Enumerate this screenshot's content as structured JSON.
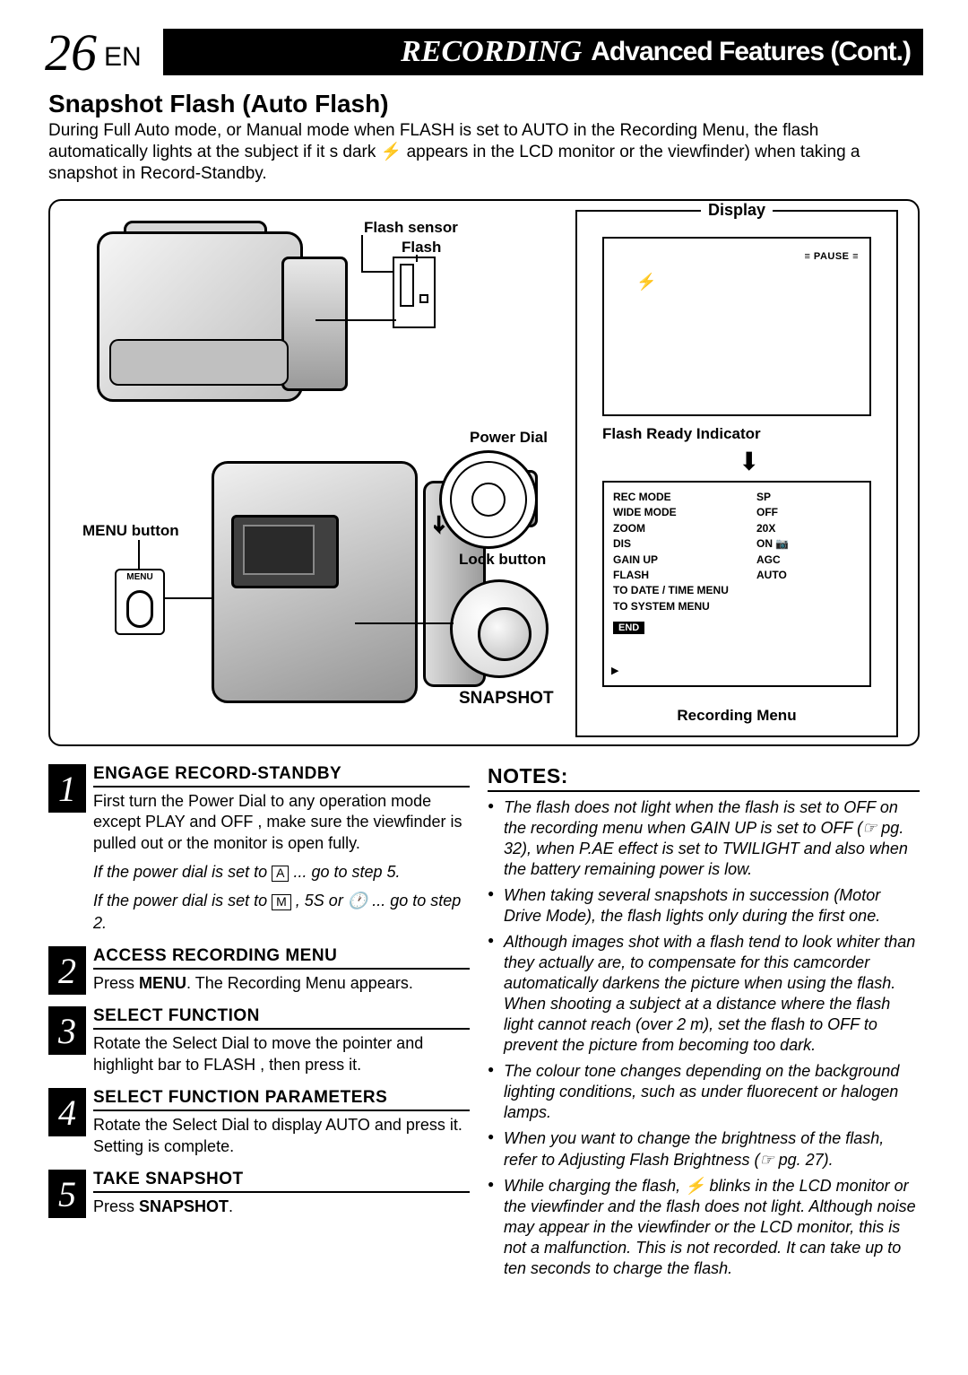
{
  "header": {
    "pageNumber": "26",
    "lang": "EN",
    "categoryItalic": "RECORDING",
    "categoryRest": "Advanced Features (Cont.)"
  },
  "sectionTitle": "Snapshot Flash (Auto Flash)",
  "intro": "During Full Auto mode, or Manual mode when FLASH is set to AUTO in the Recording Menu, the flash automatically lights at the subject if it s dark ⚡ appears in the LCD monitor or the viewfinder) when taking a snapshot in Record-Standby.",
  "diagram": {
    "flashSensor": "Flash sensor",
    "flash": "Flash",
    "powerDial": "Power Dial",
    "lockButton": "Lock button",
    "menuButton": "MENU button",
    "menuSmall": "MENU",
    "snapshot": "SNAPSHOT",
    "display": {
      "title": "Display",
      "pause": "PAUSE",
      "flashReadyIndicator": "Flash Ready Indicator",
      "recordingMenuLabel": "Recording Menu",
      "menu": [
        {
          "k": "REC MODE",
          "v": "SP"
        },
        {
          "k": "WIDE MODE",
          "v": "OFF"
        },
        {
          "k": "ZOOM",
          "v": "20X"
        },
        {
          "k": "DIS",
          "v": "ON 📷"
        },
        {
          "k": "GAIN UP",
          "v": "AGC"
        },
        {
          "k": "FLASH",
          "v": "AUTO"
        },
        {
          "k": "TO DATE / TIME MENU",
          "v": ""
        },
        {
          "k": "TO SYSTEM MENU",
          "v": ""
        }
      ],
      "end": "END"
    }
  },
  "steps": [
    {
      "n": "1",
      "title": "ENGAGE RECORD-STANDBY",
      "text": "First turn the Power Dial to any operation mode except PLAY and OFF , make sure the viewfinder is pulled out or the monitor is open fully.",
      "italicA_pre": "If the power dial is set to ",
      "italicA_box": "A",
      "italicA_post": " ... go to step 5.",
      "italicB_pre": "If the power dial is set to ",
      "italicB_box": "M",
      "italicB_mid": " , 5S or ",
      "italicB_clock": "🕐",
      "italicB_post": " ... go to step 2."
    },
    {
      "n": "2",
      "title": "ACCESS RECORDING MENU",
      "text": "Press MENU. The Recording Menu appears."
    },
    {
      "n": "3",
      "title": "SELECT FUNCTION",
      "text": "Rotate the Select Dial to move the pointer and highlight bar to FLASH , then press it."
    },
    {
      "n": "4",
      "title": "SELECT FUNCTION PARAMETERS",
      "text": "Rotate the Select Dial to display AUTO and press it. Setting is complete."
    },
    {
      "n": "5",
      "title": "TAKE SNAPSHOT",
      "text": "Press SNAPSHOT."
    }
  ],
  "notes": {
    "title": "NOTES:",
    "items": [
      "The flash does not light when the flash is set to OFF on the recording menu when GAIN UP is set to OFF (☞ pg. 32), when P.AE effect is set to TWILIGHT and also when the battery remaining power is low.",
      "When taking several snapshots in succession (Motor Drive Mode), the flash lights only during the first one.",
      "Although images shot with a flash tend to look whiter than they actually are, to compensate for this camcorder automatically darkens the picture when using the flash. When shooting a subject at a distance where the flash light cannot reach (over 2 m), set the flash to OFF to prevent the picture from becoming too dark.",
      "The colour tone changes depending on the background lighting conditions, such as under fluorecent or halogen lamps.",
      "When you want to change the brightness of the flash, refer to Adjusting Flash Brightness (☞ pg. 27).",
      "While charging the flash, ⚡ blinks in the LCD monitor or the viewfinder and the flash does not light. Although noise may appear in the viewfinder or the LCD monitor, this is not a malfunction. This is not recorded. It can take up to ten seconds to charge the flash."
    ]
  }
}
